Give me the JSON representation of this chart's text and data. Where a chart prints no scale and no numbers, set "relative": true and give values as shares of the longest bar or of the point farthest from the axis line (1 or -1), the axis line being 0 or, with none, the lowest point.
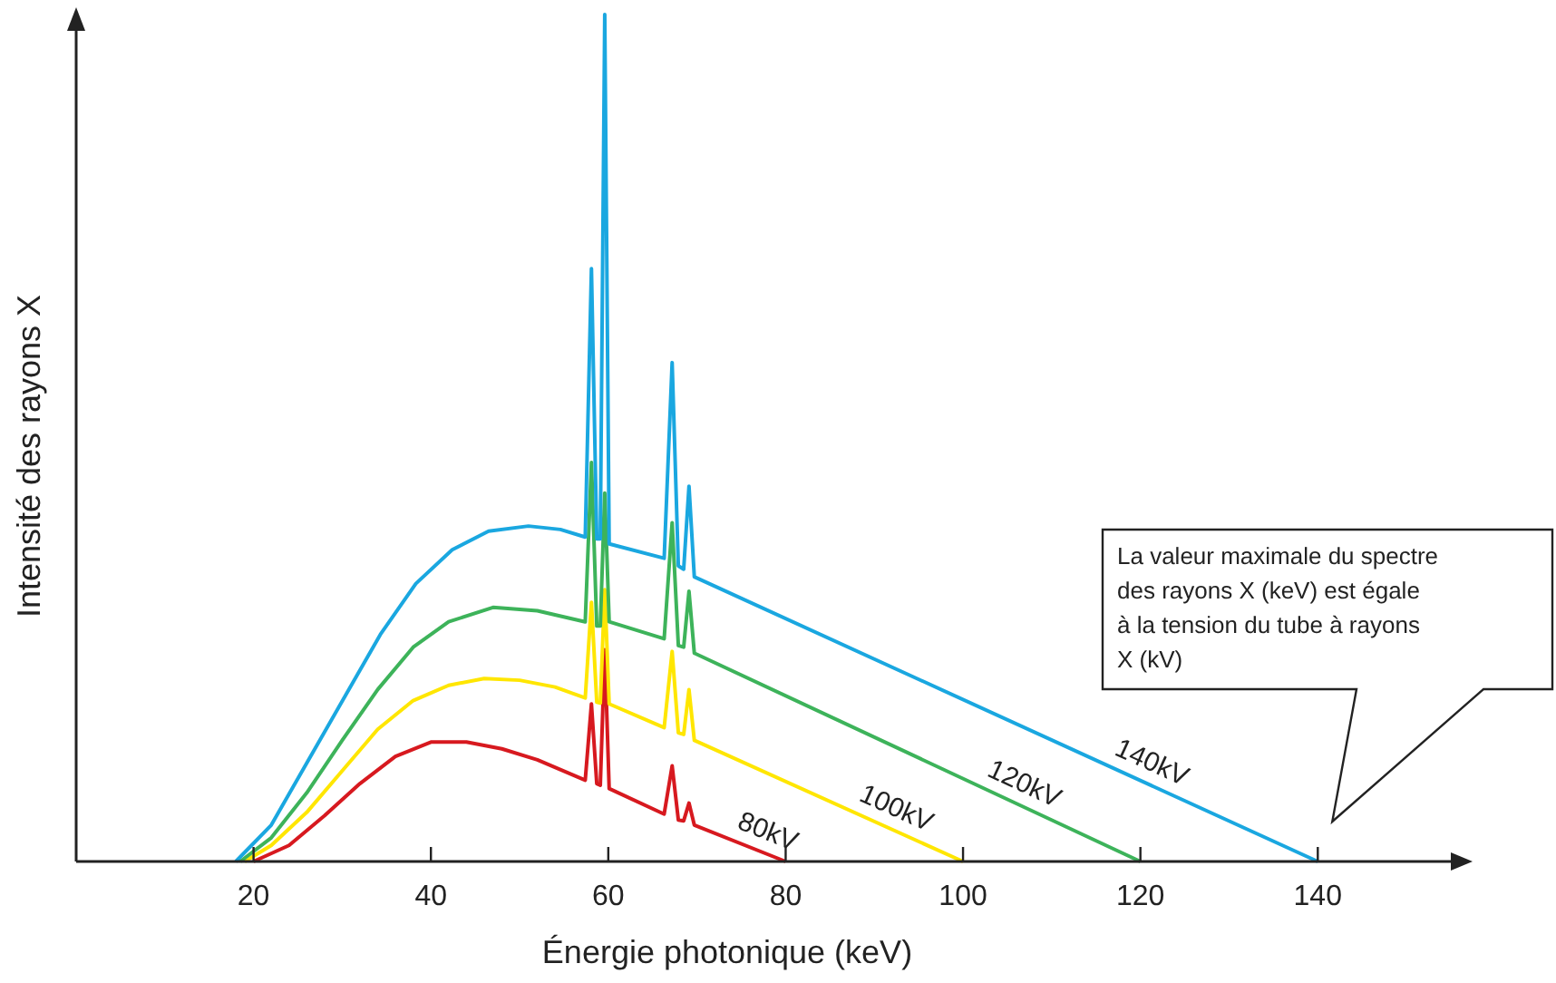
{
  "chart_data": {
    "type": "line",
    "xlabel": "Énergie photonique (keV)",
    "ylabel": "Intensité des rayons X",
    "relative": true,
    "xlim": [
      0,
      155
    ],
    "xticks": [
      20,
      40,
      60,
      80,
      100,
      120,
      140
    ],
    "annotations": [
      "La valeur maximale du spectre des rayons X (keV) est égale à la tension du tube à rayons X (kV)"
    ],
    "series": [
      {
        "name": "80kV",
        "color": "#d7191f",
        "x": [
          20,
          24,
          28,
          32,
          36,
          40,
          44,
          48,
          52,
          57.4,
          58.1,
          58.7,
          59.1,
          59.6,
          60.1,
          66.3,
          67.2,
          67.9,
          68.5,
          69.1,
          69.7,
          80
        ],
        "values": [
          0,
          0.019,
          0.054,
          0.092,
          0.124,
          0.141,
          0.141,
          0.133,
          0.12,
          0.096,
          0.186,
          0.092,
          0.09,
          0.25,
          0.086,
          0.056,
          0.113,
          0.049,
          0.048,
          0.069,
          0.043,
          0
        ]
      },
      {
        "name": "100kV",
        "color": "#ffe600",
        "x": [
          19,
          22,
          26,
          30,
          34,
          38,
          42,
          46,
          50,
          54,
          57.4,
          58.1,
          58.7,
          59.1,
          59.6,
          60.1,
          66.3,
          67.2,
          67.9,
          68.5,
          69.1,
          69.7,
          100
        ],
        "values": [
          0,
          0.019,
          0.058,
          0.107,
          0.156,
          0.19,
          0.208,
          0.216,
          0.214,
          0.206,
          0.193,
          0.306,
          0.188,
          0.187,
          0.321,
          0.186,
          0.158,
          0.248,
          0.152,
          0.15,
          0.203,
          0.143,
          0
        ]
      },
      {
        "name": "120kV",
        "color": "#3db35a",
        "x": [
          18.5,
          22,
          26,
          30,
          34,
          38,
          42,
          47,
          52,
          57.4,
          58.1,
          58.7,
          59.1,
          59.6,
          60.1,
          66.3,
          67.2,
          67.9,
          68.5,
          69.1,
          69.7,
          120
        ],
        "values": [
          0,
          0.028,
          0.081,
          0.143,
          0.203,
          0.253,
          0.283,
          0.3,
          0.296,
          0.283,
          0.471,
          0.278,
          0.278,
          0.435,
          0.283,
          0.263,
          0.4,
          0.255,
          0.253,
          0.319,
          0.246,
          0
        ]
      },
      {
        "name": "140kV",
        "color": "#1aa7e0",
        "x": [
          18,
          22,
          26.1,
          30.2,
          34.3,
          38.3,
          42.4,
          46.5,
          51,
          54.6,
          57.4,
          58.1,
          58.7,
          59.1,
          59.6,
          60.1,
          66.3,
          67.2,
          67.9,
          68.5,
          69.1,
          69.7,
          140
        ],
        "values": [
          0,
          0.043,
          0.118,
          0.193,
          0.268,
          0.328,
          0.368,
          0.39,
          0.396,
          0.392,
          0.383,
          0.7,
          0.381,
          0.381,
          1,
          0.375,
          0.358,
          0.589,
          0.349,
          0.345,
          0.443,
          0.336,
          0
        ]
      }
    ]
  }
}
